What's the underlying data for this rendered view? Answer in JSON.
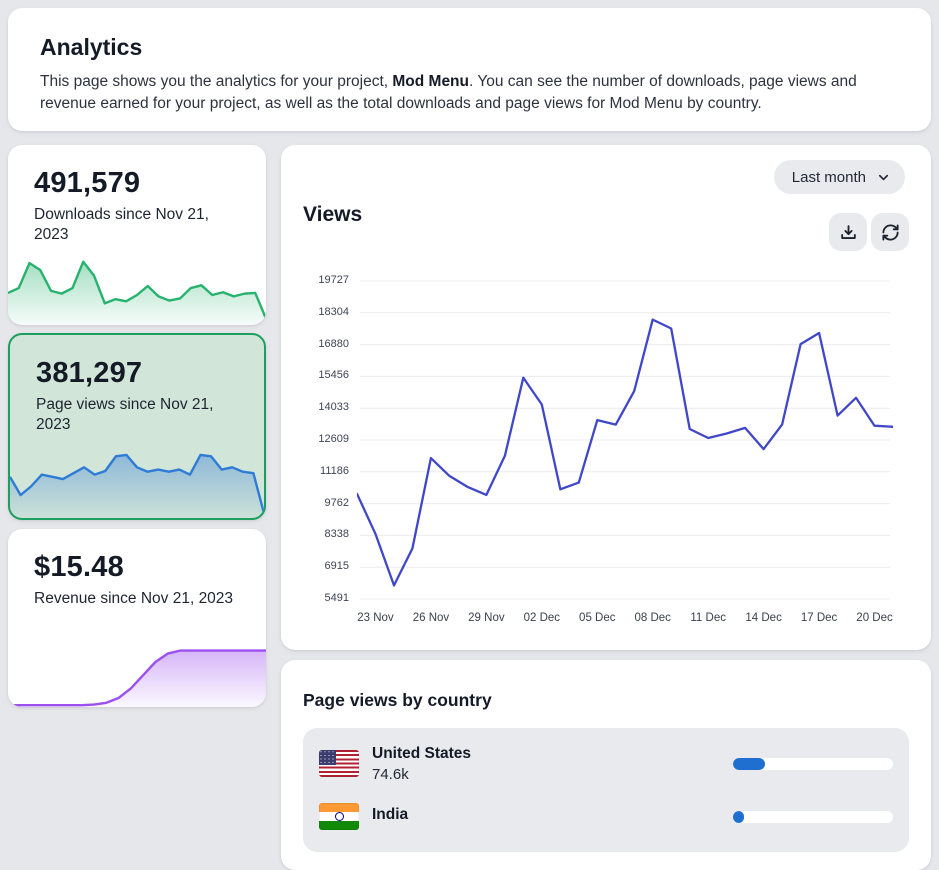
{
  "header": {
    "title": "Analytics",
    "desc_before": "This page shows you the analytics for your project, ",
    "desc_bold": "Mod Menu",
    "desc_after": ". You can see the number of downloads, page views and revenue earned for your project, as well as the total downloads and page views for Mod Menu by country."
  },
  "stat_cards": [
    {
      "id": "downloads",
      "value": "491,579",
      "label": "Downloads since Nov 21, 2023",
      "color": "#27b26e",
      "selected": false
    },
    {
      "id": "pageviews",
      "value": "381,297",
      "label": "Page views since Nov 21, 2023",
      "color": "#2e7cd6",
      "selected": true
    },
    {
      "id": "revenue",
      "value": "$15.48",
      "label": "Revenue since Nov 21, 2023",
      "color": "#9c50f0",
      "selected": false
    }
  ],
  "toolbar": {
    "range_label": "Last month",
    "icons": [
      "chevron-down-icon",
      "download-icon",
      "refresh-icon"
    ]
  },
  "views_panel": {
    "title": "Views"
  },
  "country_panel": {
    "title": "Page views by country",
    "rows": [
      {
        "country": "United States",
        "value": "74.6k",
        "flag": "us-flag-icon",
        "bar_percent": 20,
        "bar_color": "#1e6fd0"
      },
      {
        "country": "India",
        "value": "",
        "flag": "india-flag-icon",
        "bar_percent": 7,
        "bar_color": "#1e6fd0"
      }
    ]
  },
  "chart_data": [
    {
      "id": "views_main",
      "type": "line",
      "title": "Views",
      "x": [
        "22 Nov",
        "23 Nov",
        "24 Nov",
        "25 Nov",
        "26 Nov",
        "27 Nov",
        "28 Nov",
        "29 Nov",
        "30 Nov",
        "01 Dec",
        "02 Dec",
        "03 Dec",
        "04 Dec",
        "05 Dec",
        "06 Dec",
        "07 Dec",
        "08 Dec",
        "09 Dec",
        "10 Dec",
        "11 Dec",
        "12 Dec",
        "13 Dec",
        "14 Dec",
        "15 Dec",
        "16 Dec",
        "17 Dec",
        "18 Dec",
        "19 Dec",
        "20 Dec",
        "21 Dec"
      ],
      "values": [
        10200,
        8400,
        6100,
        7750,
        11800,
        11000,
        10500,
        10150,
        11900,
        15400,
        14200,
        10400,
        10700,
        13500,
        13300,
        14800,
        18000,
        17600,
        13100,
        12700,
        12900,
        13150,
        12200,
        13300,
        16900,
        17400,
        13700,
        14500,
        13250,
        13200
      ],
      "x_tick_labels": [
        "23 Nov",
        "26 Nov",
        "29 Nov",
        "02 Dec",
        "05 Dec",
        "08 Dec",
        "11 Dec",
        "14 Dec",
        "17 Dec",
        "20 Dec"
      ],
      "x_tick_indices": [
        1,
        4,
        7,
        10,
        13,
        16,
        19,
        22,
        25,
        28
      ],
      "y_ticks": [
        5491,
        6915,
        8338,
        9762,
        11186,
        12609,
        14033,
        15456,
        16880,
        18304,
        19727
      ],
      "ylim": [
        5491,
        19727
      ],
      "line_color": "#4047c8",
      "grid_color": "#ececf0",
      "grid": true,
      "legend": "none"
    },
    {
      "id": "downloads_spark",
      "type": "area",
      "values": [
        45,
        52,
        88,
        78,
        48,
        44,
        52,
        90,
        70,
        30,
        36,
        33,
        42,
        55,
        40,
        34,
        37,
        52,
        56,
        42,
        46,
        40,
        44,
        45,
        8
      ],
      "ylim": [
        0,
        100
      ],
      "line_color": "#27b26e"
    },
    {
      "id": "pageviews_spark",
      "type": "area",
      "values": [
        55,
        30,
        42,
        58,
        55,
        52,
        60,
        68,
        58,
        63,
        83,
        85,
        68,
        62,
        65,
        62,
        65,
        58,
        85,
        83,
        65,
        68,
        62,
        60,
        5
      ],
      "ylim": [
        0,
        100
      ],
      "line_color": "#2e7cd6"
    },
    {
      "id": "revenue_spark",
      "type": "area",
      "values": [
        2,
        2,
        2,
        2,
        2,
        2,
        2,
        3,
        6,
        14,
        30,
        52,
        74,
        88,
        93,
        93,
        93,
        93,
        93,
        93,
        93,
        93
      ],
      "ylim": [
        0,
        100
      ],
      "line_color": "#9c50f0"
    }
  ]
}
